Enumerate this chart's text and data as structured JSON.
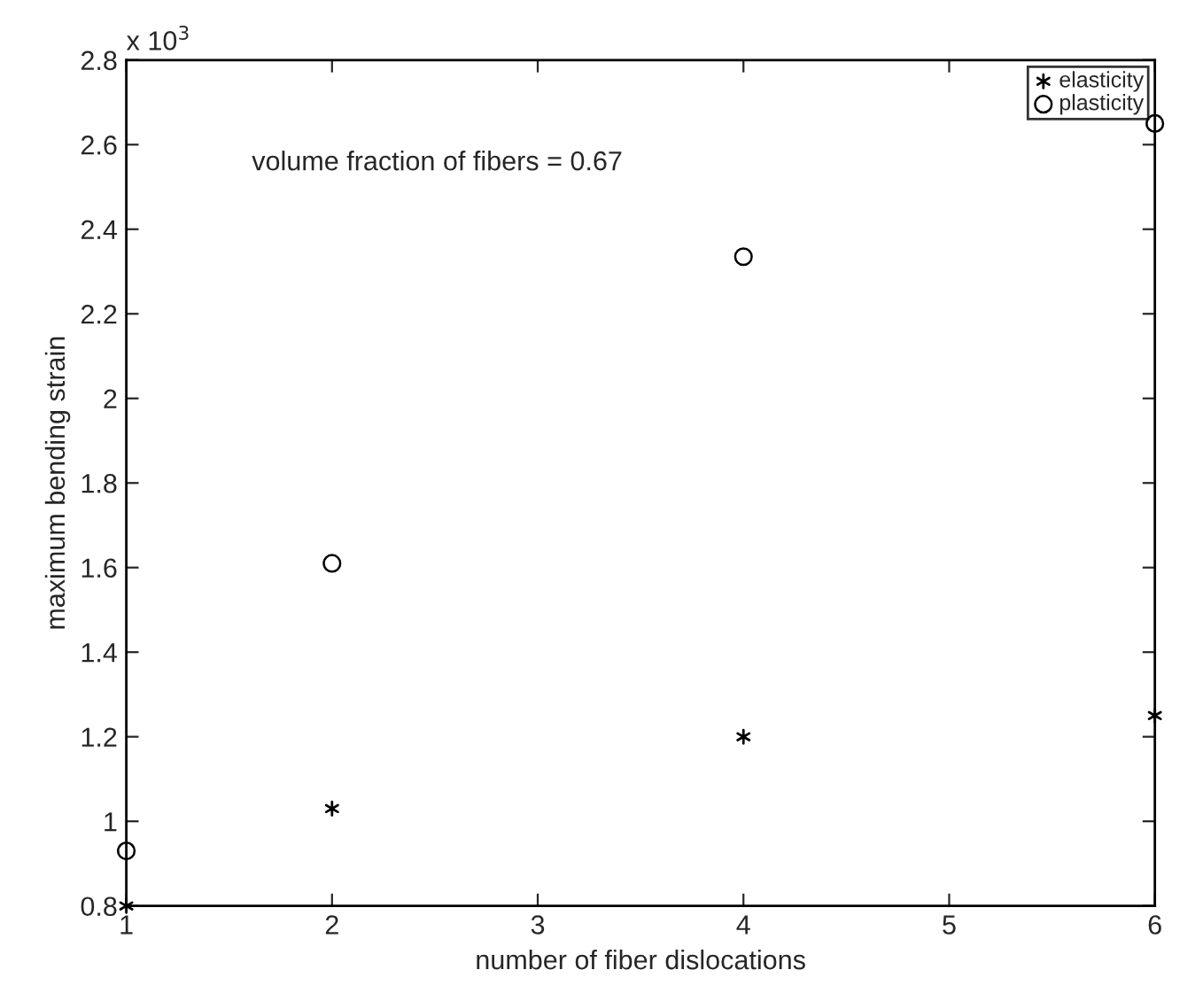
{
  "chart_data": {
    "type": "scatter",
    "xlabel": "number of fiber dislocations",
    "ylabel": "maximum bending strain",
    "x": [
      1,
      2,
      4,
      6
    ],
    "series": [
      {
        "name": "elasticity",
        "color": "#000000",
        "marker": "cross",
        "values": [
          0.8,
          1.03,
          1.2,
          1.25
        ]
      },
      {
        "name": "plasticity",
        "color": "#000000",
        "marker": "circle",
        "values": [
          0.93,
          1.61,
          2.335,
          2.65
        ]
      }
    ],
    "xlim": [
      1,
      6
    ],
    "xticks": [
      1,
      2,
      3,
      4,
      5,
      6
    ],
    "ylim": [
      0.8,
      2.8
    ],
    "yticks": [
      0.8,
      1,
      1.2,
      1.4,
      1.6,
      1.8,
      2,
      2.2,
      2.4,
      2.6,
      2.8
    ],
    "annotations": [
      "volume fraction of fibers = 0.67",
      "x 10$^{3}$"
    ],
    "grid": false,
    "legend": "top right"
  }
}
